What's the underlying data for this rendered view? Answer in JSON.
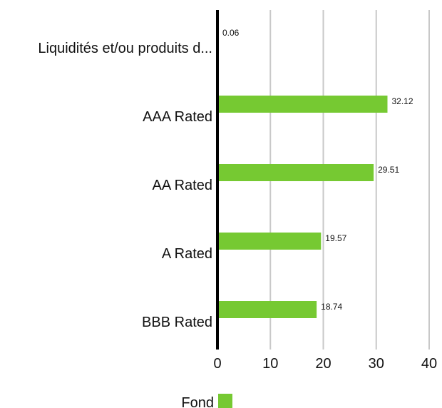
{
  "chart_data": {
    "type": "bar",
    "orientation": "horizontal",
    "categories": [
      "Liquidités et/ou produits d...",
      "AAA Rated",
      "AA Rated",
      "A Rated",
      "BBB Rated"
    ],
    "series": [
      {
        "name": "Fond",
        "values": [
          0.06,
          32.12,
          29.51,
          19.57,
          18.74
        ]
      }
    ],
    "data_labels": [
      "0.06",
      "32.12",
      "29.51",
      "19.57",
      "18.74"
    ],
    "xlim": [
      0,
      40
    ],
    "x_ticks": [
      "0",
      "10",
      "20",
      "30",
      "40"
    ],
    "grid": "vertical",
    "legend_position": "bottom-center",
    "colors": {
      "bar": "#76c932",
      "grid": "#c8c8c8",
      "axis": "#000000"
    }
  }
}
